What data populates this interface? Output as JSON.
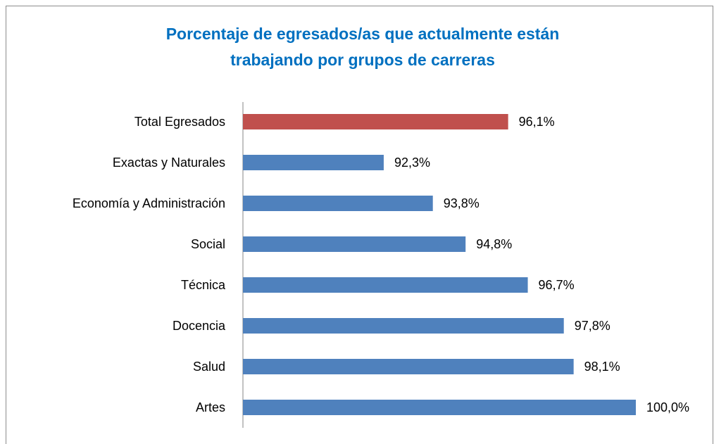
{
  "chart_data": {
    "type": "bar",
    "orientation": "horizontal",
    "title": [
      "Porcentaje de egresados/as que actualmente están",
      "trabajando por grupos de carreras"
    ],
    "categories": [
      "Total Egresados",
      "Exactas y Naturales",
      "Economía y Administración",
      "Social",
      "Técnica",
      "Docencia",
      "Salud",
      "Artes"
    ],
    "values": [
      96.1,
      92.3,
      93.8,
      94.8,
      96.7,
      97.8,
      98.1,
      100.0
    ],
    "value_labels": [
      "96,1%",
      "92,3%",
      "93,8%",
      "94,8%",
      "96,7%",
      "97,8%",
      "98,1%",
      "100,0%"
    ],
    "colors": [
      "#c0504d",
      "#4f81bd",
      "#4f81bd",
      "#4f81bd",
      "#4f81bd",
      "#4f81bd",
      "#4f81bd",
      "#4f81bd"
    ],
    "xlim": [
      88,
      100
    ]
  }
}
